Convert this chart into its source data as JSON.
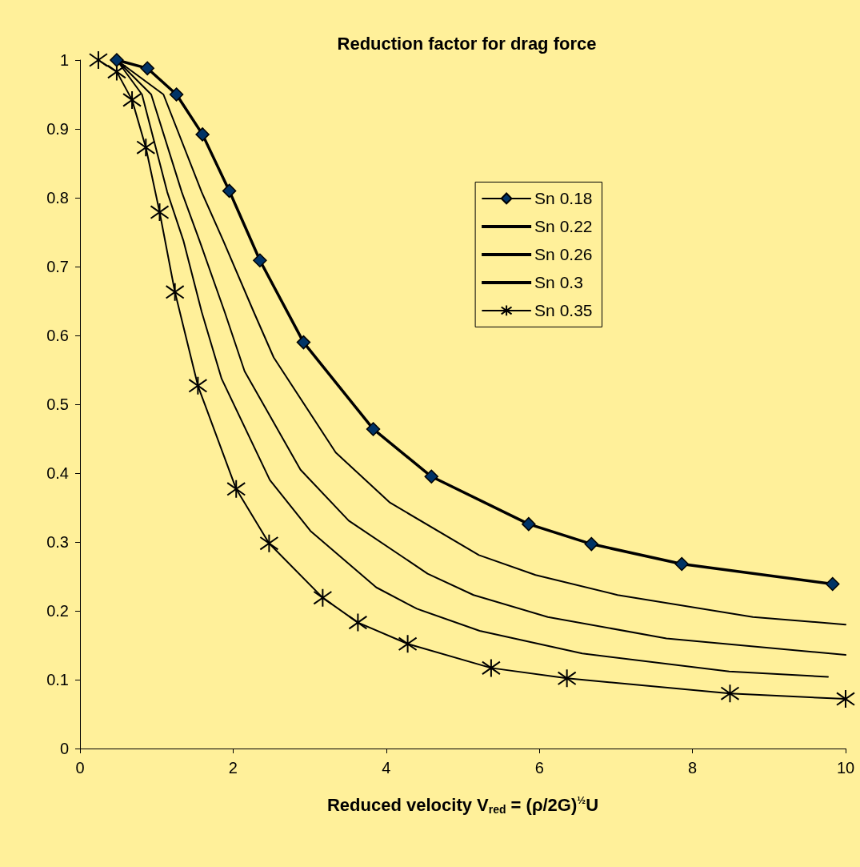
{
  "chart_data": {
    "type": "line",
    "title": "Reduction factor for drag force",
    "xlabel": "Reduced velocity V$_{red}$ = (ρ/2G)$^{½}$U",
    "xlim": [
      0,
      10
    ],
    "xticks": [
      0,
      2,
      4,
      6,
      8,
      10
    ],
    "ylim": [
      0,
      1
    ],
    "yticks": [
      0,
      0.1,
      0.2,
      0.3,
      0.4,
      0.5,
      0.6,
      0.7,
      0.8,
      0.9,
      1
    ],
    "legend": "top right",
    "line_style": "solid",
    "series": [
      {
        "name": "Sn 0.18",
        "color": "#003366",
        "marker": "diamond",
        "x": [
          0.48,
          0.88,
          1.26,
          1.6,
          1.95,
          2.35,
          2.92,
          3.83,
          4.59,
          5.86,
          6.68,
          7.86,
          9.83
        ],
        "values": [
          1.0,
          0.988,
          0.95,
          0.892,
          0.81,
          0.709,
          0.59,
          0.464,
          0.395,
          0.326,
          0.297,
          0.268,
          0.239
        ]
      },
      {
        "name": "Sn 0.22",
        "color": "#000000",
        "marker": "none",
        "x": [
          0.48,
          1.09,
          1.59,
          1.87,
          2.27,
          2.53,
          3.34,
          4.05,
          5.21,
          5.95,
          7.02,
          8.79,
          10
        ],
        "values": [
          1.0,
          0.95,
          0.808,
          0.738,
          0.634,
          0.568,
          0.43,
          0.357,
          0.281,
          0.252,
          0.223,
          0.191,
          0.18
        ]
      },
      {
        "name": "Sn 0.26",
        "color": "#000000",
        "marker": "none",
        "x": [
          0.48,
          0.93,
          1.33,
          1.56,
          1.89,
          2.15,
          2.88,
          3.51,
          4.54,
          5.14,
          6.11,
          7.66,
          10
        ],
        "values": [
          1.0,
          0.95,
          0.808,
          0.738,
          0.634,
          0.548,
          0.405,
          0.331,
          0.254,
          0.223,
          0.191,
          0.16,
          0.136
        ]
      },
      {
        "name": "Sn 0.3",
        "color": "#000000",
        "marker": "none",
        "x": [
          0.48,
          0.81,
          1.14,
          1.35,
          1.59,
          1.85,
          2.48,
          3.01,
          3.87,
          4.4,
          5.22,
          6.56,
          8.48,
          9.77
        ],
        "values": [
          1.0,
          0.95,
          0.808,
          0.738,
          0.634,
          0.537,
          0.39,
          0.316,
          0.234,
          0.203,
          0.171,
          0.138,
          0.112,
          0.104
        ]
      },
      {
        "name": "Sn 0.35",
        "color": "#000000",
        "marker": "cross",
        "x": [
          0.24,
          0.48,
          0.68,
          0.86,
          1.04,
          1.24,
          1.54,
          2.04,
          2.47,
          3.17,
          3.63,
          4.28,
          5.37,
          6.36,
          8.49,
          10
        ],
        "values": [
          1.0,
          0.983,
          0.942,
          0.873,
          0.779,
          0.663,
          0.527,
          0.377,
          0.298,
          0.219,
          0.183,
          0.152,
          0.117,
          0.102,
          0.08,
          0.072
        ]
      }
    ]
  }
}
